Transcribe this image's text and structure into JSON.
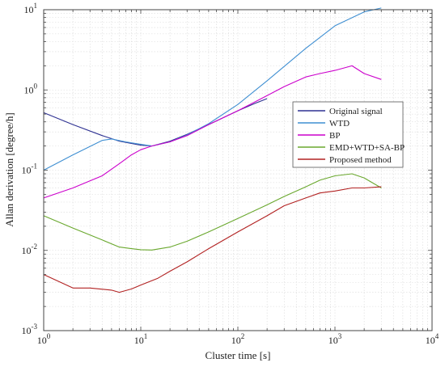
{
  "chart_data": {
    "type": "line",
    "title": "",
    "xlabel": "Cluster time [s]",
    "ylabel": "Allan derivation [degree/h]",
    "x_scale": "log",
    "y_scale": "log",
    "xlim": [
      1,
      10000
    ],
    "ylim": [
      0.001,
      10
    ],
    "grid": true,
    "legend_position": "right",
    "x_ticks": [
      {
        "base": "10",
        "exp": "0",
        "value": 1
      },
      {
        "base": "10",
        "exp": "1",
        "value": 10
      },
      {
        "base": "10",
        "exp": "2",
        "value": 100
      },
      {
        "base": "10",
        "exp": "3",
        "value": 1000
      },
      {
        "base": "10",
        "exp": "4",
        "value": 10000
      }
    ],
    "y_ticks": [
      {
        "base": "10",
        "exp": "-3",
        "value": 0.001
      },
      {
        "base": "10",
        "exp": "-2",
        "value": 0.01
      },
      {
        "base": "10",
        "exp": "-1",
        "value": 0.1
      },
      {
        "base": "10",
        "exp": "0",
        "value": 1
      },
      {
        "base": "10",
        "exp": "1",
        "value": 10
      }
    ],
    "series": [
      {
        "name": "Original signal",
        "color": "#2e3192",
        "points": [
          [
            1,
            0.52
          ],
          [
            2,
            0.37
          ],
          [
            4,
            0.27
          ],
          [
            6,
            0.23
          ],
          [
            8,
            0.215
          ],
          [
            10,
            0.205
          ],
          [
            13,
            0.2
          ],
          [
            20,
            0.23
          ],
          [
            30,
            0.28
          ],
          [
            50,
            0.37
          ],
          [
            100,
            0.55
          ],
          [
            150,
            0.68
          ],
          [
            200,
            0.78
          ]
        ]
      },
      {
        "name": "WTD",
        "color": "#3f8fd2",
        "points": [
          [
            1,
            0.1
          ],
          [
            2,
            0.155
          ],
          [
            4,
            0.235
          ],
          [
            5,
            0.245
          ],
          [
            7,
            0.225
          ],
          [
            10,
            0.21
          ],
          [
            13,
            0.2
          ],
          [
            20,
            0.225
          ],
          [
            30,
            0.275
          ],
          [
            50,
            0.38
          ],
          [
            100,
            0.66
          ],
          [
            200,
            1.3
          ],
          [
            500,
            3.3
          ],
          [
            1000,
            6.3
          ],
          [
            2000,
            9.4
          ],
          [
            3000,
            10.5
          ]
        ]
      },
      {
        "name": "BP",
        "color": "#cc00cc",
        "points": [
          [
            1,
            0.045
          ],
          [
            2,
            0.06
          ],
          [
            4,
            0.085
          ],
          [
            6,
            0.12
          ],
          [
            8,
            0.155
          ],
          [
            10,
            0.18
          ],
          [
            13,
            0.2
          ],
          [
            20,
            0.225
          ],
          [
            30,
            0.27
          ],
          [
            50,
            0.37
          ],
          [
            100,
            0.55
          ],
          [
            200,
            0.85
          ],
          [
            300,
            1.1
          ],
          [
            500,
            1.45
          ],
          [
            700,
            1.6
          ],
          [
            1000,
            1.75
          ],
          [
            1500,
            2.0
          ],
          [
            2000,
            1.6
          ],
          [
            3000,
            1.35
          ]
        ]
      },
      {
        "name": "EMD+WTD+SA-BP",
        "color": "#6aa82e",
        "points": [
          [
            1,
            0.027
          ],
          [
            2,
            0.019
          ],
          [
            4,
            0.0135
          ],
          [
            6,
            0.011
          ],
          [
            8,
            0.0105
          ],
          [
            10,
            0.0102
          ],
          [
            13,
            0.0101
          ],
          [
            20,
            0.011
          ],
          [
            30,
            0.013
          ],
          [
            50,
            0.017
          ],
          [
            100,
            0.025
          ],
          [
            200,
            0.037
          ],
          [
            300,
            0.047
          ],
          [
            500,
            0.062
          ],
          [
            700,
            0.075
          ],
          [
            1000,
            0.085
          ],
          [
            1500,
            0.09
          ],
          [
            2000,
            0.08
          ],
          [
            3000,
            0.06
          ]
        ]
      },
      {
        "name": "Proposed method",
        "color": "#b22222",
        "points": [
          [
            1,
            0.005
          ],
          [
            2,
            0.0034
          ],
          [
            3,
            0.0034
          ],
          [
            5,
            0.0032
          ],
          [
            6,
            0.003
          ],
          [
            8,
            0.0033
          ],
          [
            10,
            0.0037
          ],
          [
            15,
            0.0045
          ],
          [
            20,
            0.0055
          ],
          [
            30,
            0.0072
          ],
          [
            50,
            0.0105
          ],
          [
            100,
            0.017
          ],
          [
            200,
            0.027
          ],
          [
            300,
            0.036
          ],
          [
            500,
            0.045
          ],
          [
            700,
            0.052
          ],
          [
            1000,
            0.055
          ],
          [
            1500,
            0.06
          ],
          [
            2000,
            0.06
          ],
          [
            3000,
            0.062
          ]
        ]
      }
    ]
  }
}
